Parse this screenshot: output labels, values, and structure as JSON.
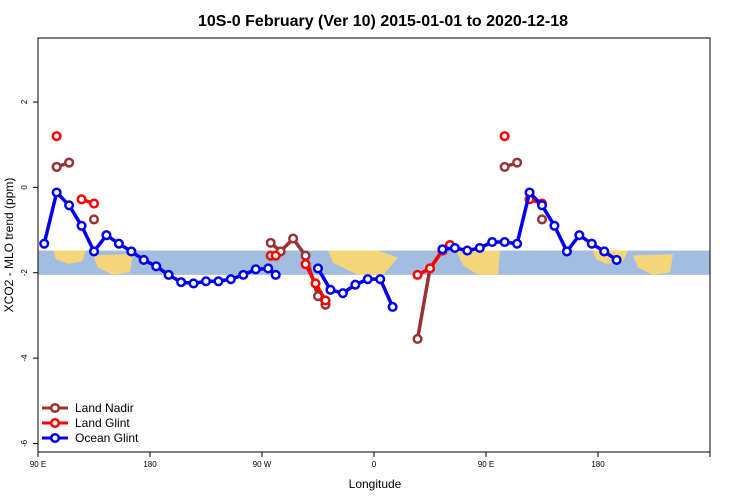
{
  "chart_data": {
    "type": "line",
    "title": "10S-0 February (Ver 10)   2015-01-01 to 2020-12-18",
    "xlabel": "Longitude",
    "ylabel": "XCO2 - MLO trend (ppm)",
    "xlim": [
      -90,
      180
    ],
    "ylim": [
      -6.2,
      3.5
    ],
    "x_ticks": [
      {
        "value": -90,
        "label": "90 E"
      },
      {
        "value": -45,
        "label": "180"
      },
      {
        "value": 0,
        "label": "90 W"
      },
      {
        "value": 45,
        "label": "0"
      },
      {
        "value": 90,
        "label": "90 E"
      },
      {
        "value": 135,
        "label": "180"
      }
    ],
    "y_ticks": [
      {
        "value": 2,
        "label": "2"
      },
      {
        "value": 0,
        "label": "0"
      },
      {
        "value": -2,
        "label": "-2"
      },
      {
        "value": -4,
        "label": "-4"
      },
      {
        "value": -6,
        "label": "-6"
      }
    ],
    "map_band": {
      "y_range": [
        -2.05,
        -1.48
      ]
    },
    "grid": false,
    "legend_position": "bottom-left",
    "series": [
      {
        "name": "Land Nadir",
        "color": "#993333",
        "points": [
          [
            -82.5,
            0.48
          ],
          [
            -77.5,
            0.58
          ]
        ],
        "segments": [
          [
            [
              -67.5,
              -0.75
            ]
          ],
          [
            [
              3.5,
              -1.3
            ],
            [
              7.5,
              -1.5
            ],
            [
              12.5,
              -1.2
            ],
            [
              17.5,
              -1.6
            ],
            [
              22.5,
              -2.55
            ],
            [
              25.5,
              -2.75
            ]
          ],
          [
            [
              62.5,
              -3.55
            ],
            [
              67.5,
              -1.9
            ],
            [
              72.5,
              -1.48
            ]
          ],
          [
            [
              97.5,
              0.48
            ],
            [
              102.5,
              0.58
            ]
          ],
          [
            [
              112.5,
              -0.75
            ]
          ]
        ]
      },
      {
        "name": "Land Glint",
        "color": "#ff0000",
        "segments": [
          [
            [
              -82.5,
              1.2
            ]
          ],
          [
            [
              -72.5,
              -0.28
            ],
            [
              -67.5,
              -0.38
            ]
          ],
          [
            [
              3.5,
              -1.6
            ],
            [
              5.5,
              -1.6
            ]
          ],
          [
            [
              17.5,
              -1.8
            ],
            [
              21.5,
              -2.25
            ],
            [
              25.5,
              -2.65
            ]
          ],
          [
            [
              62.5,
              -2.05
            ],
            [
              67.5,
              -1.9
            ],
            [
              72.5,
              -1.48
            ],
            [
              75.5,
              -1.35
            ]
          ],
          [
            [
              97.5,
              1.2
            ]
          ],
          [
            [
              107.5,
              -0.28
            ],
            [
              112.5,
              -0.38
            ]
          ]
        ]
      },
      {
        "name": "Ocean Glint",
        "color": "#0000ee",
        "segments": [
          [
            [
              -87.5,
              -1.32
            ],
            [
              -82.5,
              -0.12
            ],
            [
              -77.5,
              -0.42
            ],
            [
              -72.5,
              -0.9
            ],
            [
              -67.5,
              -1.5
            ],
            [
              -62.5,
              -1.12
            ],
            [
              -57.5,
              -1.32
            ],
            [
              -52.5,
              -1.5
            ],
            [
              -47.5,
              -1.7
            ],
            [
              -42.5,
              -1.85
            ],
            [
              -37.5,
              -2.05
            ],
            [
              -32.5,
              -2.22
            ],
            [
              -27.5,
              -2.25
            ],
            [
              -22.5,
              -2.2
            ],
            [
              -17.5,
              -2.2
            ],
            [
              -12.5,
              -2.15
            ],
            [
              -7.5,
              -2.05
            ],
            [
              -2.5,
              -1.92
            ],
            [
              2.5,
              -1.9
            ],
            [
              5.5,
              -2.05
            ]
          ],
          [
            [
              22.5,
              -1.9
            ],
            [
              27.5,
              -2.4
            ],
            [
              32.5,
              -2.48
            ],
            [
              37.5,
              -2.28
            ],
            [
              42.5,
              -2.15
            ],
            [
              47.5,
              -2.15
            ],
            [
              52.5,
              -2.8
            ]
          ],
          [
            [
              72.5,
              -1.45
            ],
            [
              77.5,
              -1.42
            ],
            [
              82.5,
              -1.48
            ],
            [
              87.5,
              -1.42
            ],
            [
              92.5,
              -1.28
            ],
            [
              97.5,
              -1.28
            ],
            [
              102.5,
              -1.32
            ],
            [
              107.5,
              -0.12
            ],
            [
              112.5,
              -0.42
            ],
            [
              117.5,
              -0.9
            ],
            [
              122.5,
              -1.5
            ],
            [
              127.5,
              -1.12
            ],
            [
              132.5,
              -1.32
            ],
            [
              137.5,
              -1.5
            ],
            [
              142.5,
              -1.7
            ]
          ]
        ]
      }
    ]
  }
}
